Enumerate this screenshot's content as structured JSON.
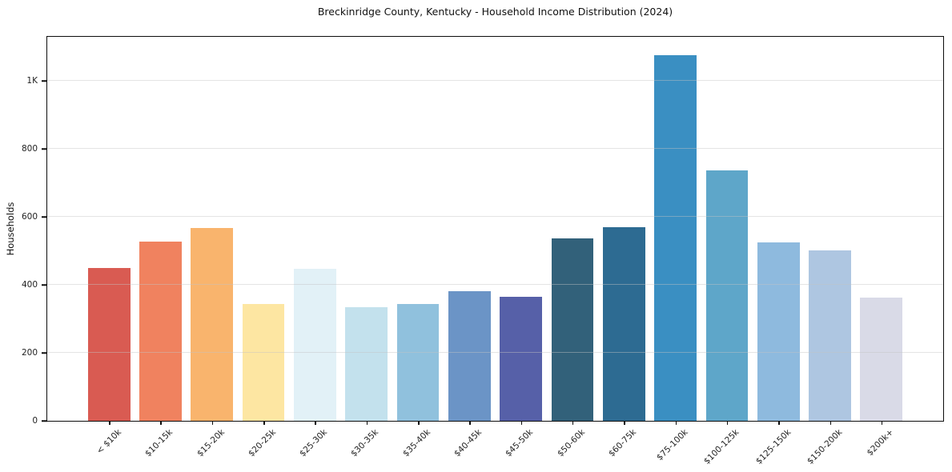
{
  "title": "Breckinridge County, Kentucky - Household Income Distribution (2024)",
  "colors": {
    "background": "#ffffff",
    "axis_border": "#0d0d0d",
    "gridline": "#c3c3c3",
    "text": "#222222"
  },
  "chart_data": {
    "type": "bar",
    "title": "Breckinridge County, Kentucky - Household Income Distribution (2024)",
    "xlabel": "",
    "ylabel": "Households",
    "ylim": [
      0,
      1130
    ],
    "grid": "horizontal-only, drawn above bars",
    "legend": "none",
    "x_tick_rotation": 45,
    "yticks": [
      {
        "value": 0,
        "label": "0"
      },
      {
        "value": 200,
        "label": "200"
      },
      {
        "value": 400,
        "label": "400"
      },
      {
        "value": 600,
        "label": "600"
      },
      {
        "value": 800,
        "label": "800"
      },
      {
        "value": 1000,
        "label": "1K"
      }
    ],
    "categories": [
      "< $10k",
      "$10-15k",
      "$15-20k",
      "$20-25k",
      "$25-30k",
      "$30-35k",
      "$35-40k",
      "$40-45k",
      "$45-50k",
      "$50-60k",
      "$60-75k",
      "$75-100k",
      "$100-125k",
      "$125-150k",
      "$150-200k",
      "$200k+"
    ],
    "values": [
      450,
      527,
      568,
      344,
      447,
      335,
      344,
      382,
      365,
      536,
      570,
      1075,
      738,
      524,
      501,
      362
    ],
    "bar_colors": [
      "#d95b52",
      "#f0825f",
      "#f9b46d",
      "#fde6a2",
      "#e2f1f7",
      "#c3e1ed",
      "#90c1dd",
      "#6b94c6",
      "#5660a8",
      "#32617a",
      "#2d6b92",
      "#3a8fc2",
      "#5ea6c9",
      "#8ebade",
      "#aec6e1",
      "#d9dae7"
    ]
  }
}
